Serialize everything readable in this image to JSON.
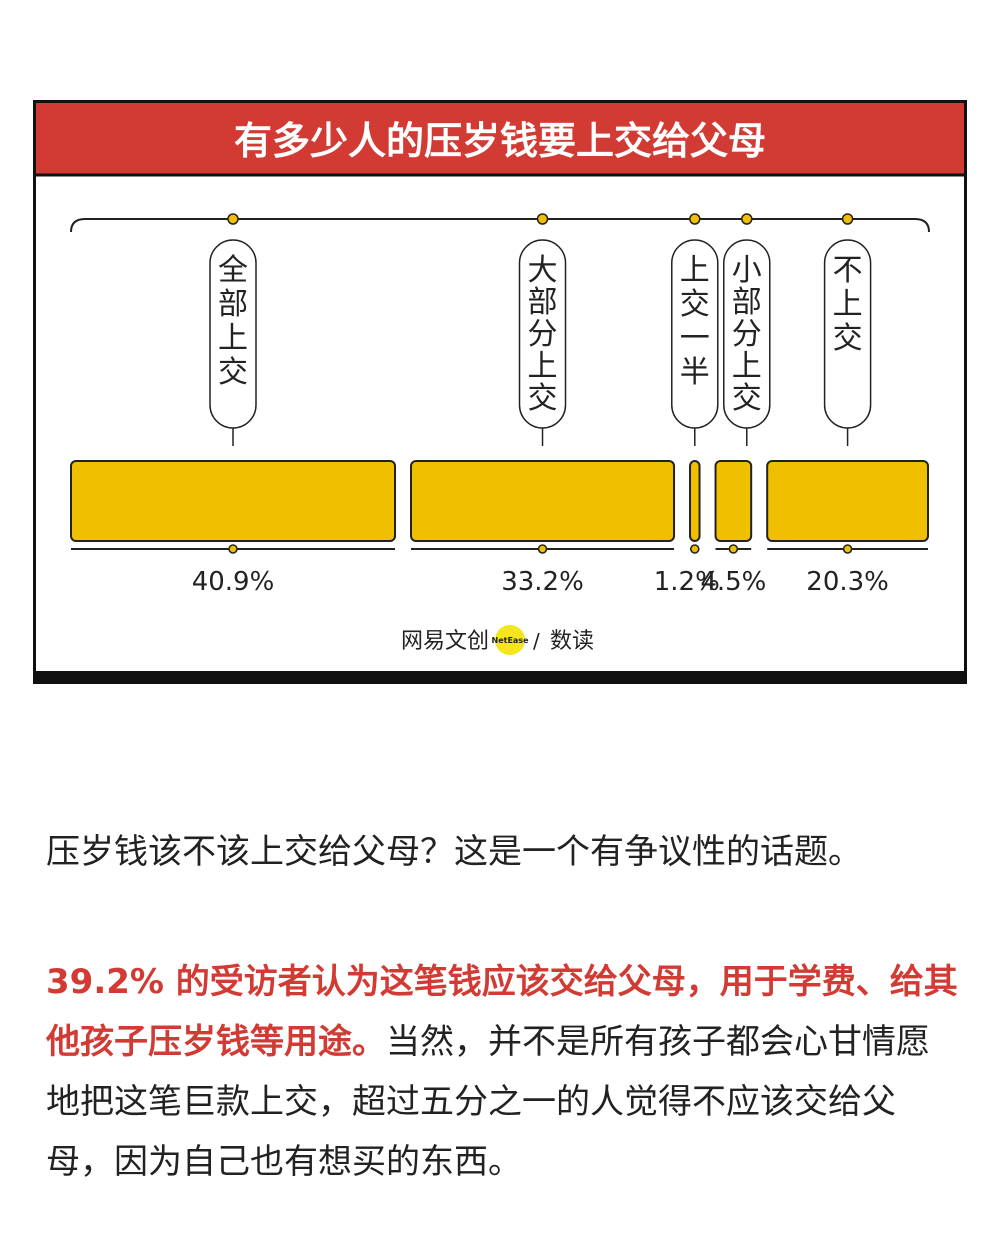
{
  "chart_data": {
    "type": "bar",
    "title": "有多少人的压岁钱要上交给父母",
    "categories": [
      "全部上交",
      "大部分上交",
      "上交一半",
      "小部分上交",
      "不上交"
    ],
    "values": [
      40.9,
      33.2,
      1.2,
      4.5,
      20.3
    ],
    "value_labels": [
      "40.9%",
      "33.2%",
      "1.2%",
      "4.5%",
      "20.3%"
    ],
    "bar_color": "#f0c000",
    "header_color": "#d23b34"
  },
  "branding": {
    "logo_text": "网易文创",
    "badge_text": "NetEase",
    "separator": "/",
    "sub_brand": "数读"
  },
  "article": {
    "intro": "压岁钱该不该上交给父母？这是一个有争议性的话题。",
    "highlight": "39.2% 的受访者认为这笔钱应该交给父母，用于学费、给其他孩子压岁钱等用途。",
    "body": "当然，并不是所有孩子都会心甘情愿地把这笔巨款上交，超过五分之一的人觉得不应该交给父母，因为自己也有想买的东西。"
  }
}
